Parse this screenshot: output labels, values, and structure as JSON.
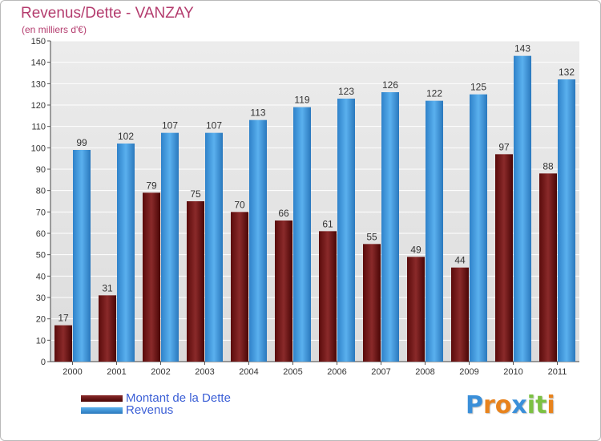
{
  "header": {
    "title": "Revenus/Dette - VANZAY",
    "subtitle": "(en milliers d'€)"
  },
  "legend": {
    "debt_label": "Montant de la Dette",
    "revenue_label": "Revenus"
  },
  "logo": {
    "text": "Proxiti",
    "letters": [
      "P",
      "r",
      "o",
      "x",
      "i",
      "t",
      "i"
    ],
    "colors": [
      "#3a8fd9",
      "#e8831d",
      "#e8831d",
      "#3a8fd9",
      "#7cc142",
      "#7cc142",
      "#e8831d"
    ]
  },
  "colors": {
    "debt": "#7a1818",
    "revenue": "#4aa3e6",
    "title": "#b43c6e",
    "legend_text": "#3b5fd6"
  },
  "chart_data": {
    "type": "bar",
    "title": "Revenus/Dette - VANZAY",
    "subtitle": "(en milliers d'€)",
    "categories": [
      "2000",
      "2001",
      "2002",
      "2003",
      "2004",
      "2005",
      "2006",
      "2007",
      "2008",
      "2009",
      "2010",
      "2011"
    ],
    "series": [
      {
        "name": "Montant de la Dette",
        "values": [
          17,
          31,
          79,
          75,
          70,
          66,
          61,
          55,
          49,
          44,
          97,
          88
        ]
      },
      {
        "name": "Revenus",
        "values": [
          99,
          102,
          107,
          107,
          113,
          119,
          123,
          126,
          122,
          125,
          143,
          132
        ]
      }
    ],
    "ylim": [
      0,
      150
    ],
    "yticks": [
      0,
      10,
      20,
      30,
      40,
      50,
      60,
      70,
      80,
      90,
      100,
      110,
      120,
      130,
      140,
      150
    ],
    "grid": true,
    "legend_position": "bottom-left"
  }
}
